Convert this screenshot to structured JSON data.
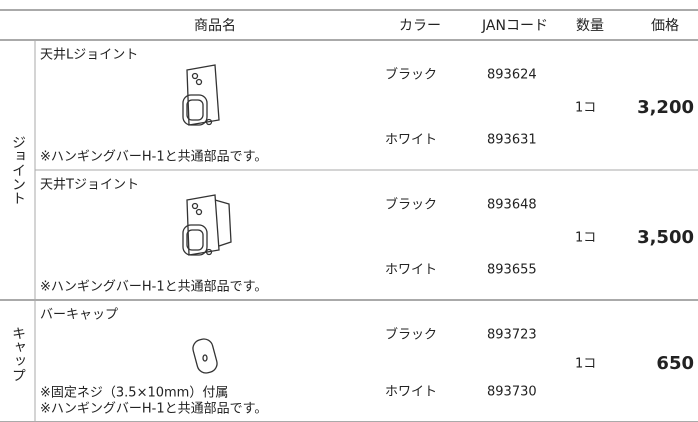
{
  "header": {
    "columns": [
      "商品名",
      "カラー",
      "JANコード",
      "数量",
      "価格"
    ]
  },
  "groups": [
    {
      "label": "ジョイント",
      "products": [
        {
          "name": "天井Lジョイント",
          "notes": [
            "※ハンギングバーH-1と共通部品です。"
          ],
          "variants": [
            {
              "color": "ブラック",
              "jan": "893624"
            },
            {
              "color": "ホワイト",
              "jan": "893631"
            }
          ],
          "quantity": "1コ",
          "price": "3,200"
        },
        {
          "name": "天井Tジョイント",
          "notes": [
            "※ハンギングバーH-1と共通部品です。"
          ],
          "variants": [
            {
              "color": "ブラック",
              "jan": "893648"
            },
            {
              "color": "ホワイト",
              "jan": "893655"
            }
          ],
          "quantity": "1コ",
          "price": "3,500"
        }
      ]
    },
    {
      "label": "キャップ",
      "products": [
        {
          "name": "バーキャップ",
          "notes": [
            "※固定ネジ（3.5×10mm）付属",
            "※ハンギングバーH-1と共通部品です。"
          ],
          "variants": [
            {
              "color": "ブラック",
              "jan": "893723"
            },
            {
              "color": "ホワイト",
              "jan": "893730"
            }
          ],
          "quantity": "1コ",
          "price": "650"
        }
      ]
    }
  ]
}
